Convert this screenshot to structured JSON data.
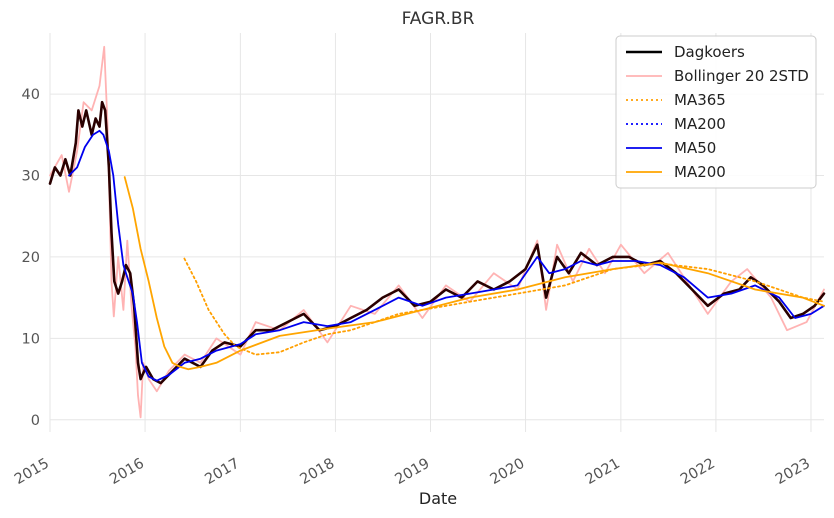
{
  "chart_data": {
    "type": "line",
    "title": "FAGR.BR",
    "xlabel": "Date",
    "ylabel": "",
    "xlim": [
      "2015-01-01",
      "2023-02-20"
    ],
    "ylim": [
      -1.5,
      47.5
    ],
    "x_ticks": [
      {
        "date": "2015-01-01",
        "label": "2015"
      },
      {
        "date": "2016-01-01",
        "label": "2016"
      },
      {
        "date": "2017-01-01",
        "label": "2017"
      },
      {
        "date": "2018-01-01",
        "label": "2018"
      },
      {
        "date": "2019-01-01",
        "label": "2019"
      },
      {
        "date": "2020-01-01",
        "label": "2020"
      },
      {
        "date": "2021-01-01",
        "label": "2021"
      },
      {
        "date": "2022-01-01",
        "label": "2022"
      },
      {
        "date": "2023-01-01",
        "label": "2023"
      }
    ],
    "y_ticks": [
      0,
      10,
      20,
      30,
      40
    ],
    "grid": true,
    "legend_position": "top-right",
    "series": [
      {
        "name": "Bollinger 20 2STD",
        "style": "solid",
        "color": "#ffb3b3",
        "points": [
          [
            "2015-01-01",
            30
          ],
          [
            "2015-02-15",
            32.5
          ],
          [
            "2015-03-15",
            28
          ],
          [
            "2015-04-15",
            33
          ],
          [
            "2015-05-10",
            39
          ],
          [
            "2015-06-10",
            38
          ],
          [
            "2015-07-10",
            41
          ],
          [
            "2015-07-28",
            45.8
          ],
          [
            "2015-08-10",
            36
          ],
          [
            "2015-08-25",
            17
          ],
          [
            "2015-09-03",
            12.7
          ],
          [
            "2015-09-20",
            20
          ],
          [
            "2015-10-10",
            13.5
          ],
          [
            "2015-10-25",
            22
          ],
          [
            "2015-11-10",
            14
          ],
          [
            "2015-11-25",
            9
          ],
          [
            "2015-12-05",
            3
          ],
          [
            "2015-12-15",
            0.3
          ],
          [
            "2015-12-25",
            7
          ],
          [
            "2016-01-15",
            5
          ],
          [
            "2016-02-15",
            3.5
          ],
          [
            "2016-04-01",
            6
          ],
          [
            "2016-06-01",
            8
          ],
          [
            "2016-08-01",
            7
          ],
          [
            "2016-10-01",
            10
          ],
          [
            "2017-01-01",
            8
          ],
          [
            "2017-03-01",
            12
          ],
          [
            "2017-06-01",
            11
          ],
          [
            "2017-09-01",
            13.5
          ],
          [
            "2017-12-01",
            9.5
          ],
          [
            "2018-03-01",
            14
          ],
          [
            "2018-06-01",
            13
          ],
          [
            "2018-09-01",
            16.5
          ],
          [
            "2018-12-01",
            12.5
          ],
          [
            "2019-03-01",
            16.5
          ],
          [
            "2019-06-01",
            14.5
          ],
          [
            "2019-09-01",
            18
          ],
          [
            "2019-12-01",
            16
          ],
          [
            "2020-02-15",
            22
          ],
          [
            "2020-03-20",
            13.5
          ],
          [
            "2020-05-01",
            21.5
          ],
          [
            "2020-07-01",
            17
          ],
          [
            "2020-09-01",
            21
          ],
          [
            "2020-11-01",
            18
          ],
          [
            "2021-01-01",
            21.5
          ],
          [
            "2021-04-01",
            18
          ],
          [
            "2021-07-01",
            20.5
          ],
          [
            "2021-10-01",
            16
          ],
          [
            "2021-12-01",
            13
          ],
          [
            "2022-03-01",
            17
          ],
          [
            "2022-05-01",
            18.5
          ],
          [
            "2022-08-01",
            15
          ],
          [
            "2022-10-01",
            11
          ],
          [
            "2022-12-15",
            12
          ],
          [
            "2023-02-20",
            16
          ]
        ]
      },
      {
        "name": "Dagkoers",
        "style": "solid",
        "color": "#2a0000",
        "points": [
          [
            "2015-01-01",
            29
          ],
          [
            "2015-01-20",
            31
          ],
          [
            "2015-02-10",
            30
          ],
          [
            "2015-03-01",
            32
          ],
          [
            "2015-03-20",
            30
          ],
          [
            "2015-04-10",
            34
          ],
          [
            "2015-04-20",
            38
          ],
          [
            "2015-05-05",
            36
          ],
          [
            "2015-05-20",
            38
          ],
          [
            "2015-06-10",
            35
          ],
          [
            "2015-06-25",
            37
          ],
          [
            "2015-07-10",
            36
          ],
          [
            "2015-07-20",
            39
          ],
          [
            "2015-08-01",
            38
          ],
          [
            "2015-08-15",
            31
          ],
          [
            "2015-08-25",
            23
          ],
          [
            "2015-09-05",
            17
          ],
          [
            "2015-09-20",
            15.5
          ],
          [
            "2015-10-05",
            17
          ],
          [
            "2015-10-20",
            19
          ],
          [
            "2015-11-05",
            18
          ],
          [
            "2015-11-20",
            14
          ],
          [
            "2015-12-05",
            7
          ],
          [
            "2015-12-15",
            5
          ],
          [
            "2016-01-05",
            6.5
          ],
          [
            "2016-02-01",
            5
          ],
          [
            "2016-03-01",
            4.5
          ],
          [
            "2016-05-01",
            6.5
          ],
          [
            "2016-06-01",
            7.5
          ],
          [
            "2016-08-01",
            6.5
          ],
          [
            "2016-09-15",
            8.5
          ],
          [
            "2016-11-01",
            9.5
          ],
          [
            "2017-01-01",
            9
          ],
          [
            "2017-03-01",
            11
          ],
          [
            "2017-05-01",
            11
          ],
          [
            "2017-07-01",
            12
          ],
          [
            "2017-09-01",
            13
          ],
          [
            "2017-11-01",
            11
          ],
          [
            "2018-01-01",
            11.5
          ],
          [
            "2018-03-01",
            12.5
          ],
          [
            "2018-05-01",
            13.5
          ],
          [
            "2018-07-01",
            15
          ],
          [
            "2018-09-01",
            16
          ],
          [
            "2018-11-01",
            14
          ],
          [
            "2019-01-01",
            14.5
          ],
          [
            "2019-03-01",
            16
          ],
          [
            "2019-05-01",
            15
          ],
          [
            "2019-07-01",
            17
          ],
          [
            "2019-09-01",
            16
          ],
          [
            "2019-11-01",
            17
          ],
          [
            "2020-01-01",
            18.5
          ],
          [
            "2020-02-15",
            21.5
          ],
          [
            "2020-03-20",
            15
          ],
          [
            "2020-05-01",
            20
          ],
          [
            "2020-06-15",
            18
          ],
          [
            "2020-08-01",
            20.5
          ],
          [
            "2020-10-01",
            19
          ],
          [
            "2020-12-01",
            20
          ],
          [
            "2021-02-01",
            20
          ],
          [
            "2021-04-01",
            19
          ],
          [
            "2021-06-01",
            19.5
          ],
          [
            "2021-08-01",
            18
          ],
          [
            "2021-10-01",
            16
          ],
          [
            "2021-12-01",
            14
          ],
          [
            "2022-02-01",
            15.5
          ],
          [
            "2022-04-01",
            16
          ],
          [
            "2022-05-15",
            17.5
          ],
          [
            "2022-07-01",
            16.5
          ],
          [
            "2022-09-01",
            14.5
          ],
          [
            "2022-10-15",
            12.5
          ],
          [
            "2022-12-01",
            13
          ],
          [
            "2023-01-15",
            14
          ],
          [
            "2023-02-20",
            15.5
          ]
        ]
      },
      {
        "name": "MA365",
        "style": "dotted",
        "color": "#ff9f00",
        "points": [
          [
            "2016-05-31",
            19.8
          ],
          [
            "2016-07-15",
            17
          ],
          [
            "2016-09-01",
            13.5
          ],
          [
            "2016-11-01",
            10.5
          ],
          [
            "2016-12-15",
            9
          ],
          [
            "2017-03-01",
            8
          ],
          [
            "2017-06-01",
            8.3
          ],
          [
            "2017-09-01",
            9.5
          ],
          [
            "2017-12-01",
            10.5
          ],
          [
            "2018-03-01",
            11
          ],
          [
            "2018-06-01",
            12
          ],
          [
            "2018-09-01",
            13
          ],
          [
            "2018-12-01",
            13.5
          ],
          [
            "2019-06-01",
            14.5
          ],
          [
            "2019-12-01",
            15.5
          ],
          [
            "2020-06-01",
            16.5
          ],
          [
            "2020-12-01",
            18.5
          ],
          [
            "2021-06-01",
            19.2
          ],
          [
            "2021-12-01",
            18.5
          ],
          [
            "2022-06-01",
            17
          ],
          [
            "2022-12-01",
            15
          ],
          [
            "2023-02-20",
            14.5
          ]
        ]
      },
      {
        "name": "MA200",
        "style": "dotted",
        "color": "#0000ff",
        "points": []
      },
      {
        "name": "MA50",
        "style": "solid",
        "color": "#0000ee",
        "points": [
          [
            "2015-03-15",
            30
          ],
          [
            "2015-04-15",
            31
          ],
          [
            "2015-05-15",
            33.5
          ],
          [
            "2015-06-15",
            35
          ],
          [
            "2015-07-10",
            35.5
          ],
          [
            "2015-07-25",
            35
          ],
          [
            "2015-08-15",
            33
          ],
          [
            "2015-09-01",
            30
          ],
          [
            "2015-09-20",
            24
          ],
          [
            "2015-10-10",
            19
          ],
          [
            "2015-10-25",
            17.5
          ],
          [
            "2015-11-15",
            15.5
          ],
          [
            "2015-12-01",
            12
          ],
          [
            "2015-12-20",
            7
          ],
          [
            "2016-01-15",
            5.3
          ],
          [
            "2016-02-15",
            4.8
          ],
          [
            "2016-04-01",
            5.5
          ],
          [
            "2016-06-01",
            7
          ],
          [
            "2016-08-01",
            7.5
          ],
          [
            "2016-10-01",
            8.5
          ],
          [
            "2017-01-01",
            9.3
          ],
          [
            "2017-03-01",
            10.5
          ],
          [
            "2017-06-01",
            11
          ],
          [
            "2017-09-01",
            12
          ],
          [
            "2017-12-01",
            11.5
          ],
          [
            "2018-03-01",
            12
          ],
          [
            "2018-06-01",
            13.5
          ],
          [
            "2018-09-01",
            15
          ],
          [
            "2018-12-01",
            14
          ],
          [
            "2019-03-01",
            15
          ],
          [
            "2019-06-01",
            15.5
          ],
          [
            "2019-09-01",
            16
          ],
          [
            "2019-12-01",
            16.5
          ],
          [
            "2020-02-15",
            20
          ],
          [
            "2020-04-01",
            18
          ],
          [
            "2020-06-01",
            18.5
          ],
          [
            "2020-08-01",
            19.5
          ],
          [
            "2020-10-01",
            19
          ],
          [
            "2020-12-01",
            19.5
          ],
          [
            "2021-03-01",
            19.5
          ],
          [
            "2021-06-01",
            19
          ],
          [
            "2021-09-01",
            17.5
          ],
          [
            "2021-12-01",
            15
          ],
          [
            "2022-03-01",
            15.5
          ],
          [
            "2022-06-01",
            16.5
          ],
          [
            "2022-09-01",
            15
          ],
          [
            "2022-11-01",
            12.5
          ],
          [
            "2023-01-01",
            13
          ],
          [
            "2023-02-20",
            14
          ]
        ]
      },
      {
        "name": "MA200",
        "style": "solid",
        "color": "#ffa500",
        "points": [
          [
            "2015-10-15",
            29.8
          ],
          [
            "2015-11-15",
            26
          ],
          [
            "2015-12-15",
            21
          ],
          [
            "2016-01-15",
            17
          ],
          [
            "2016-02-15",
            12.5
          ],
          [
            "2016-03-15",
            9
          ],
          [
            "2016-04-15",
            7
          ],
          [
            "2016-05-15",
            6.5
          ],
          [
            "2016-06-15",
            6.2
          ],
          [
            "2016-08-01",
            6.5
          ],
          [
            "2016-10-01",
            7
          ],
          [
            "2017-01-01",
            8.5
          ],
          [
            "2017-06-01",
            10.3
          ],
          [
            "2017-12-01",
            11.2
          ],
          [
            "2018-06-01",
            12
          ],
          [
            "2018-12-01",
            13.5
          ],
          [
            "2019-06-01",
            15
          ],
          [
            "2019-12-01",
            16
          ],
          [
            "2020-06-01",
            17.5
          ],
          [
            "2020-12-01",
            18.5
          ],
          [
            "2021-06-01",
            19.3
          ],
          [
            "2021-12-01",
            18
          ],
          [
            "2022-06-01",
            16
          ],
          [
            "2022-12-01",
            15
          ],
          [
            "2023-02-20",
            14
          ]
        ]
      }
    ],
    "legend": [
      {
        "name": "Dagkoers",
        "style": "solid",
        "color": "#000000"
      },
      {
        "name": "Bollinger 20 2STD",
        "style": "solid",
        "color": "#ffb3b3"
      },
      {
        "name": "MA365",
        "style": "dotted",
        "color": "#ff9f00"
      },
      {
        "name": "MA200",
        "style": "dotted",
        "color": "#0000ff"
      },
      {
        "name": "MA50",
        "style": "solid",
        "color": "#0000ee"
      },
      {
        "name": "MA200",
        "style": "solid",
        "color": "#ffa500"
      }
    ]
  }
}
